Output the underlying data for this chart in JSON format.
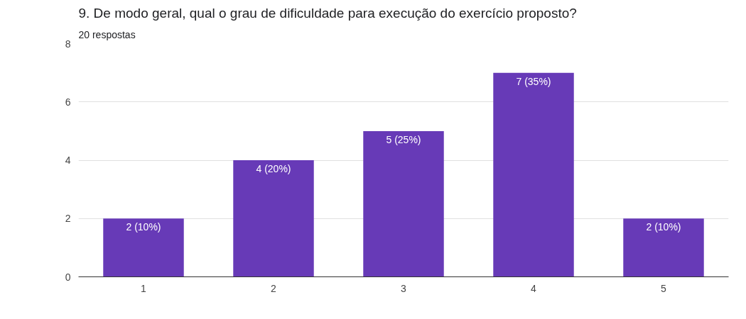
{
  "chart_data": {
    "type": "bar",
    "title": "9. De modo geral, qual o grau de dificuldade para execução do exercício proposto?",
    "subtitle": "20 respostas",
    "categories": [
      "1",
      "2",
      "3",
      "4",
      "5"
    ],
    "values": [
      2,
      4,
      5,
      7,
      2
    ],
    "value_labels": [
      "2 (10%)",
      "4 (20%)",
      "5 (25%)",
      "7 (35%)",
      "2 (10%)"
    ],
    "color": "#673ab7",
    "ylim": [
      0,
      8
    ],
    "yticks": [
      0,
      2,
      4,
      6,
      8
    ],
    "grid": "y"
  }
}
